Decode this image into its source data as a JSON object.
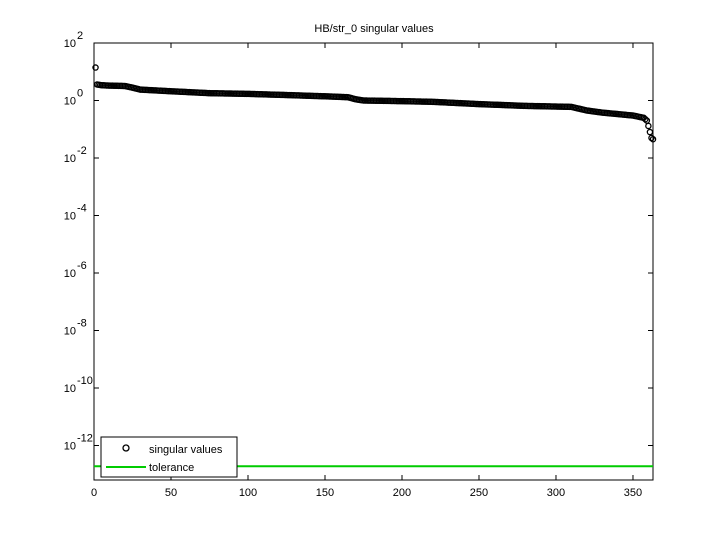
{
  "chart_data": {
    "type": "scatter",
    "title": "HB/str_0 singular values",
    "xlabel": "",
    "ylabel": "",
    "xlim": [
      0,
      363
    ],
    "ylim_log10": [
      -13.2,
      2
    ],
    "log_y": true,
    "x_ticks": [
      0,
      50,
      100,
      150,
      200,
      250,
      300,
      350
    ],
    "y_ticks": [
      {
        "base": "10",
        "exp": "2",
        "value": 100
      },
      {
        "base": "10",
        "exp": "0",
        "value": 1
      },
      {
        "base": "10",
        "exp": "-2",
        "value": 0.01
      },
      {
        "base": "10",
        "exp": "-4",
        "value": 0.0001
      },
      {
        "base": "10",
        "exp": "-6",
        "value": 1e-06
      },
      {
        "base": "10",
        "exp": "-8",
        "value": 1e-08
      },
      {
        "base": "10",
        "exp": "-10",
        "value": 1e-10
      },
      {
        "base": "10",
        "exp": "-12",
        "value": 1e-12
      }
    ],
    "grid": false,
    "legend_position": "bottom-left",
    "series": [
      {
        "name": "singular values",
        "marker": "circle",
        "color": "#000000",
        "n": 363,
        "profile_x": [
          1,
          2,
          5,
          10,
          20,
          25,
          30,
          50,
          75,
          100,
          125,
          150,
          165,
          170,
          175,
          200,
          220,
          250,
          280,
          310,
          320,
          330,
          350,
          357,
          359,
          360,
          361,
          362,
          363
        ],
        "profile_y": [
          14,
          3.6,
          3.4,
          3.3,
          3.2,
          2.8,
          2.4,
          2.1,
          1.8,
          1.7,
          1.55,
          1.4,
          1.3,
          1.1,
          1.0,
          0.95,
          0.9,
          0.75,
          0.65,
          0.6,
          0.45,
          0.38,
          0.3,
          0.25,
          0.2,
          0.13,
          0.08,
          0.05,
          0.045
        ]
      },
      {
        "name": "tolerance",
        "type": "hline",
        "color": "#00cc00",
        "value": 1.9e-13
      }
    ]
  },
  "legend": {
    "entries": [
      {
        "label": "singular values",
        "kind": "marker"
      },
      {
        "label": "tolerance",
        "kind": "line"
      }
    ]
  }
}
